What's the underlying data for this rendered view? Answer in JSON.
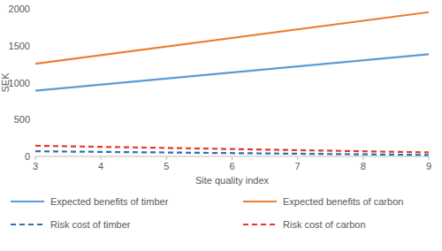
{
  "chart_data": {
    "type": "line",
    "x_label": "Site quality index",
    "y_label": "SEK",
    "x": [
      3,
      9
    ],
    "xlim": [
      3,
      9
    ],
    "xticks": [
      3,
      4,
      5,
      6,
      7,
      8,
      9
    ],
    "ylim": [
      0,
      2000
    ],
    "yticks": [
      0,
      500,
      1000,
      1500,
      2000
    ],
    "grid": false,
    "legend": "bottom",
    "series": [
      {
        "name": "Expected benefits of timber",
        "color": "#5b9bd5",
        "line_style": "solid",
        "values": [
          890,
          1385
        ]
      },
      {
        "name": "Expected benefits of carbon",
        "color": "#ed7d31",
        "line_style": "solid",
        "values": [
          1255,
          1955
        ]
      },
      {
        "name": "Risk cost of timber",
        "color": "#2e6fb8",
        "line_style": "dashed",
        "values": [
          70,
          20
        ]
      },
      {
        "name": "Risk cost of carbon",
        "color": "#e23a26",
        "line_style": "dashed",
        "values": [
          145,
          55
        ]
      }
    ]
  }
}
